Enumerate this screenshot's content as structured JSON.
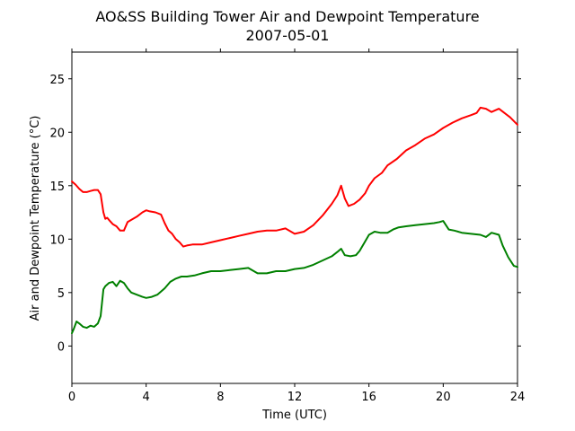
{
  "chart_data": {
    "type": "line",
    "title": "AO&SS Building Tower Air and Dewpoint Temperature",
    "subtitle": "2007-05-01",
    "xlabel": "Time (UTC)",
    "ylabel": "Air and Dewpoint Temperature (°C)",
    "xlim": [
      0,
      24
    ],
    "ylim": [
      -3.5,
      27.5
    ],
    "x_ticks": [
      0,
      4,
      8,
      12,
      16,
      20,
      24
    ],
    "x_tick_labels": [
      "0",
      "4",
      "8",
      "12",
      "16",
      "20",
      "24"
    ],
    "y_ticks": [
      0,
      5,
      10,
      15,
      20,
      25
    ],
    "y_tick_labels": [
      "0",
      "5",
      "10",
      "15",
      "20",
      "25"
    ],
    "grid": false,
    "legend": "none",
    "series": [
      {
        "color": "#ff0000",
        "x": [
          0,
          0.2,
          0.4,
          0.6,
          0.8,
          1.0,
          1.2,
          1.4,
          1.55,
          1.7,
          1.8,
          1.9,
          2.0,
          2.2,
          2.4,
          2.6,
          2.8,
          3.0,
          3.2,
          3.5,
          3.8,
          4.0,
          4.2,
          4.5,
          4.8,
          5.0,
          5.2,
          5.4,
          5.6,
          5.8,
          6.0,
          6.2,
          6.5,
          7.0,
          7.5,
          8.0,
          8.5,
          9.0,
          9.5,
          10.0,
          10.5,
          11.0,
          11.5,
          12.0,
          12.5,
          13.0,
          13.5,
          14.0,
          14.3,
          14.5,
          14.7,
          14.9,
          15.2,
          15.5,
          15.8,
          16.0,
          16.3,
          16.7,
          17.0,
          17.5,
          18.0,
          18.5,
          19.0,
          19.5,
          20.0,
          20.5,
          21.0,
          21.5,
          21.8,
          22.0,
          22.3,
          22.6,
          23.0,
          23.3,
          23.6,
          24.0
        ],
        "values": [
          15.4,
          15.1,
          14.7,
          14.4,
          14.4,
          14.5,
          14.6,
          14.6,
          14.2,
          12.5,
          11.9,
          12.0,
          11.8,
          11.4,
          11.2,
          10.8,
          10.8,
          11.6,
          11.8,
          12.1,
          12.5,
          12.7,
          12.6,
          12.5,
          12.3,
          11.5,
          10.8,
          10.5,
          10.0,
          9.7,
          9.3,
          9.4,
          9.5,
          9.5,
          9.7,
          9.9,
          10.1,
          10.3,
          10.5,
          10.7,
          10.8,
          10.8,
          11.0,
          10.5,
          10.7,
          11.3,
          12.2,
          13.3,
          14.1,
          15.0,
          13.8,
          13.1,
          13.3,
          13.7,
          14.3,
          15.0,
          15.7,
          16.2,
          16.9,
          17.5,
          18.3,
          18.8,
          19.4,
          19.8,
          20.4,
          20.9,
          21.3,
          21.6,
          21.8,
          22.3,
          22.2,
          21.9,
          22.2,
          21.8,
          21.4,
          20.7
        ]
      },
      {
        "color": "#008000",
        "x": [
          0,
          0.1,
          0.25,
          0.4,
          0.6,
          0.8,
          1.0,
          1.2,
          1.4,
          1.55,
          1.7,
          1.8,
          2.0,
          2.2,
          2.4,
          2.6,
          2.8,
          3.0,
          3.2,
          3.5,
          3.8,
          4.0,
          4.3,
          4.6,
          5.0,
          5.3,
          5.6,
          5.9,
          6.2,
          6.6,
          7.0,
          7.5,
          8.0,
          8.5,
          9.0,
          9.5,
          10.0,
          10.5,
          11.0,
          11.5,
          12.0,
          12.5,
          13.0,
          13.5,
          14.0,
          14.3,
          14.5,
          14.7,
          15.0,
          15.3,
          15.5,
          15.8,
          16.0,
          16.3,
          16.6,
          17.0,
          17.3,
          17.6,
          18.0,
          18.5,
          19.0,
          19.5,
          19.8,
          20.0,
          20.3,
          20.6,
          21.0,
          21.5,
          22.0,
          22.3,
          22.6,
          23.0,
          23.2,
          23.5,
          23.8,
          24.0
        ],
        "values": [
          1.2,
          1.6,
          2.3,
          2.1,
          1.8,
          1.7,
          1.9,
          1.8,
          2.1,
          2.8,
          5.3,
          5.6,
          5.9,
          6.0,
          5.6,
          6.1,
          5.9,
          5.4,
          5.0,
          4.8,
          4.6,
          4.5,
          4.6,
          4.8,
          5.4,
          6.0,
          6.3,
          6.5,
          6.5,
          6.6,
          6.8,
          7.0,
          7.0,
          7.1,
          7.2,
          7.3,
          6.8,
          6.8,
          7.0,
          7.0,
          7.2,
          7.3,
          7.6,
          8.0,
          8.4,
          8.8,
          9.1,
          8.5,
          8.4,
          8.5,
          8.9,
          9.8,
          10.4,
          10.7,
          10.6,
          10.6,
          10.9,
          11.1,
          11.2,
          11.3,
          11.4,
          11.5,
          11.6,
          11.7,
          10.9,
          10.8,
          10.6,
          10.5,
          10.4,
          10.2,
          10.6,
          10.4,
          9.4,
          8.3,
          7.5,
          7.4
        ]
      }
    ]
  }
}
